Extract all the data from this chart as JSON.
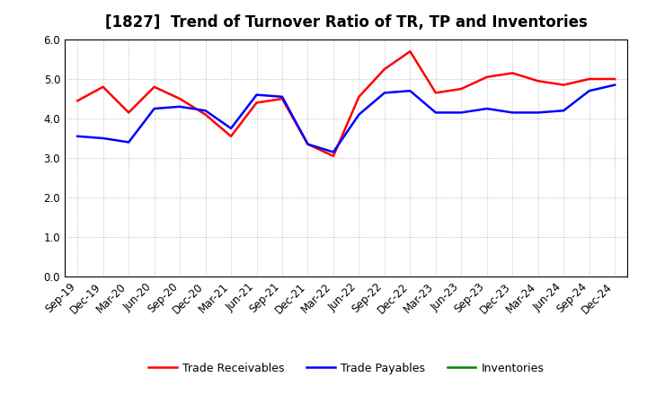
{
  "title": "[1827]  Trend of Turnover Ratio of TR, TP and Inventories",
  "labels": [
    "Sep-19",
    "Dec-19",
    "Mar-20",
    "Jun-20",
    "Sep-20",
    "Dec-20",
    "Mar-21",
    "Jun-21",
    "Sep-21",
    "Dec-21",
    "Mar-22",
    "Jun-22",
    "Sep-22",
    "Dec-22",
    "Mar-23",
    "Jun-23",
    "Sep-23",
    "Dec-23",
    "Mar-24",
    "Jun-24",
    "Sep-24",
    "Dec-24"
  ],
  "trade_receivables": [
    4.45,
    4.8,
    4.15,
    4.8,
    4.5,
    4.1,
    3.55,
    4.4,
    4.5,
    3.35,
    3.05,
    4.55,
    5.25,
    5.7,
    4.65,
    4.75,
    5.05,
    5.15,
    4.95,
    4.85,
    5.0,
    5.0
  ],
  "trade_payables": [
    3.55,
    3.5,
    3.4,
    4.25,
    4.3,
    4.2,
    3.75,
    4.6,
    4.55,
    3.35,
    3.15,
    4.1,
    4.65,
    4.7,
    4.15,
    4.15,
    4.25,
    4.15,
    4.15,
    4.2,
    4.7,
    4.85
  ],
  "tr_color": "#ff0000",
  "tp_color": "#0000ff",
  "inv_color": "#008000",
  "ylim": [
    0.0,
    6.0
  ],
  "yticks": [
    0.0,
    1.0,
    2.0,
    3.0,
    4.0,
    5.0,
    6.0
  ],
  "background_color": "#ffffff",
  "grid_color": "#999999",
  "legend_items": [
    "Trade Receivables",
    "Trade Payables",
    "Inventories"
  ],
  "title_fontsize": 12,
  "tick_fontsize": 8.5
}
